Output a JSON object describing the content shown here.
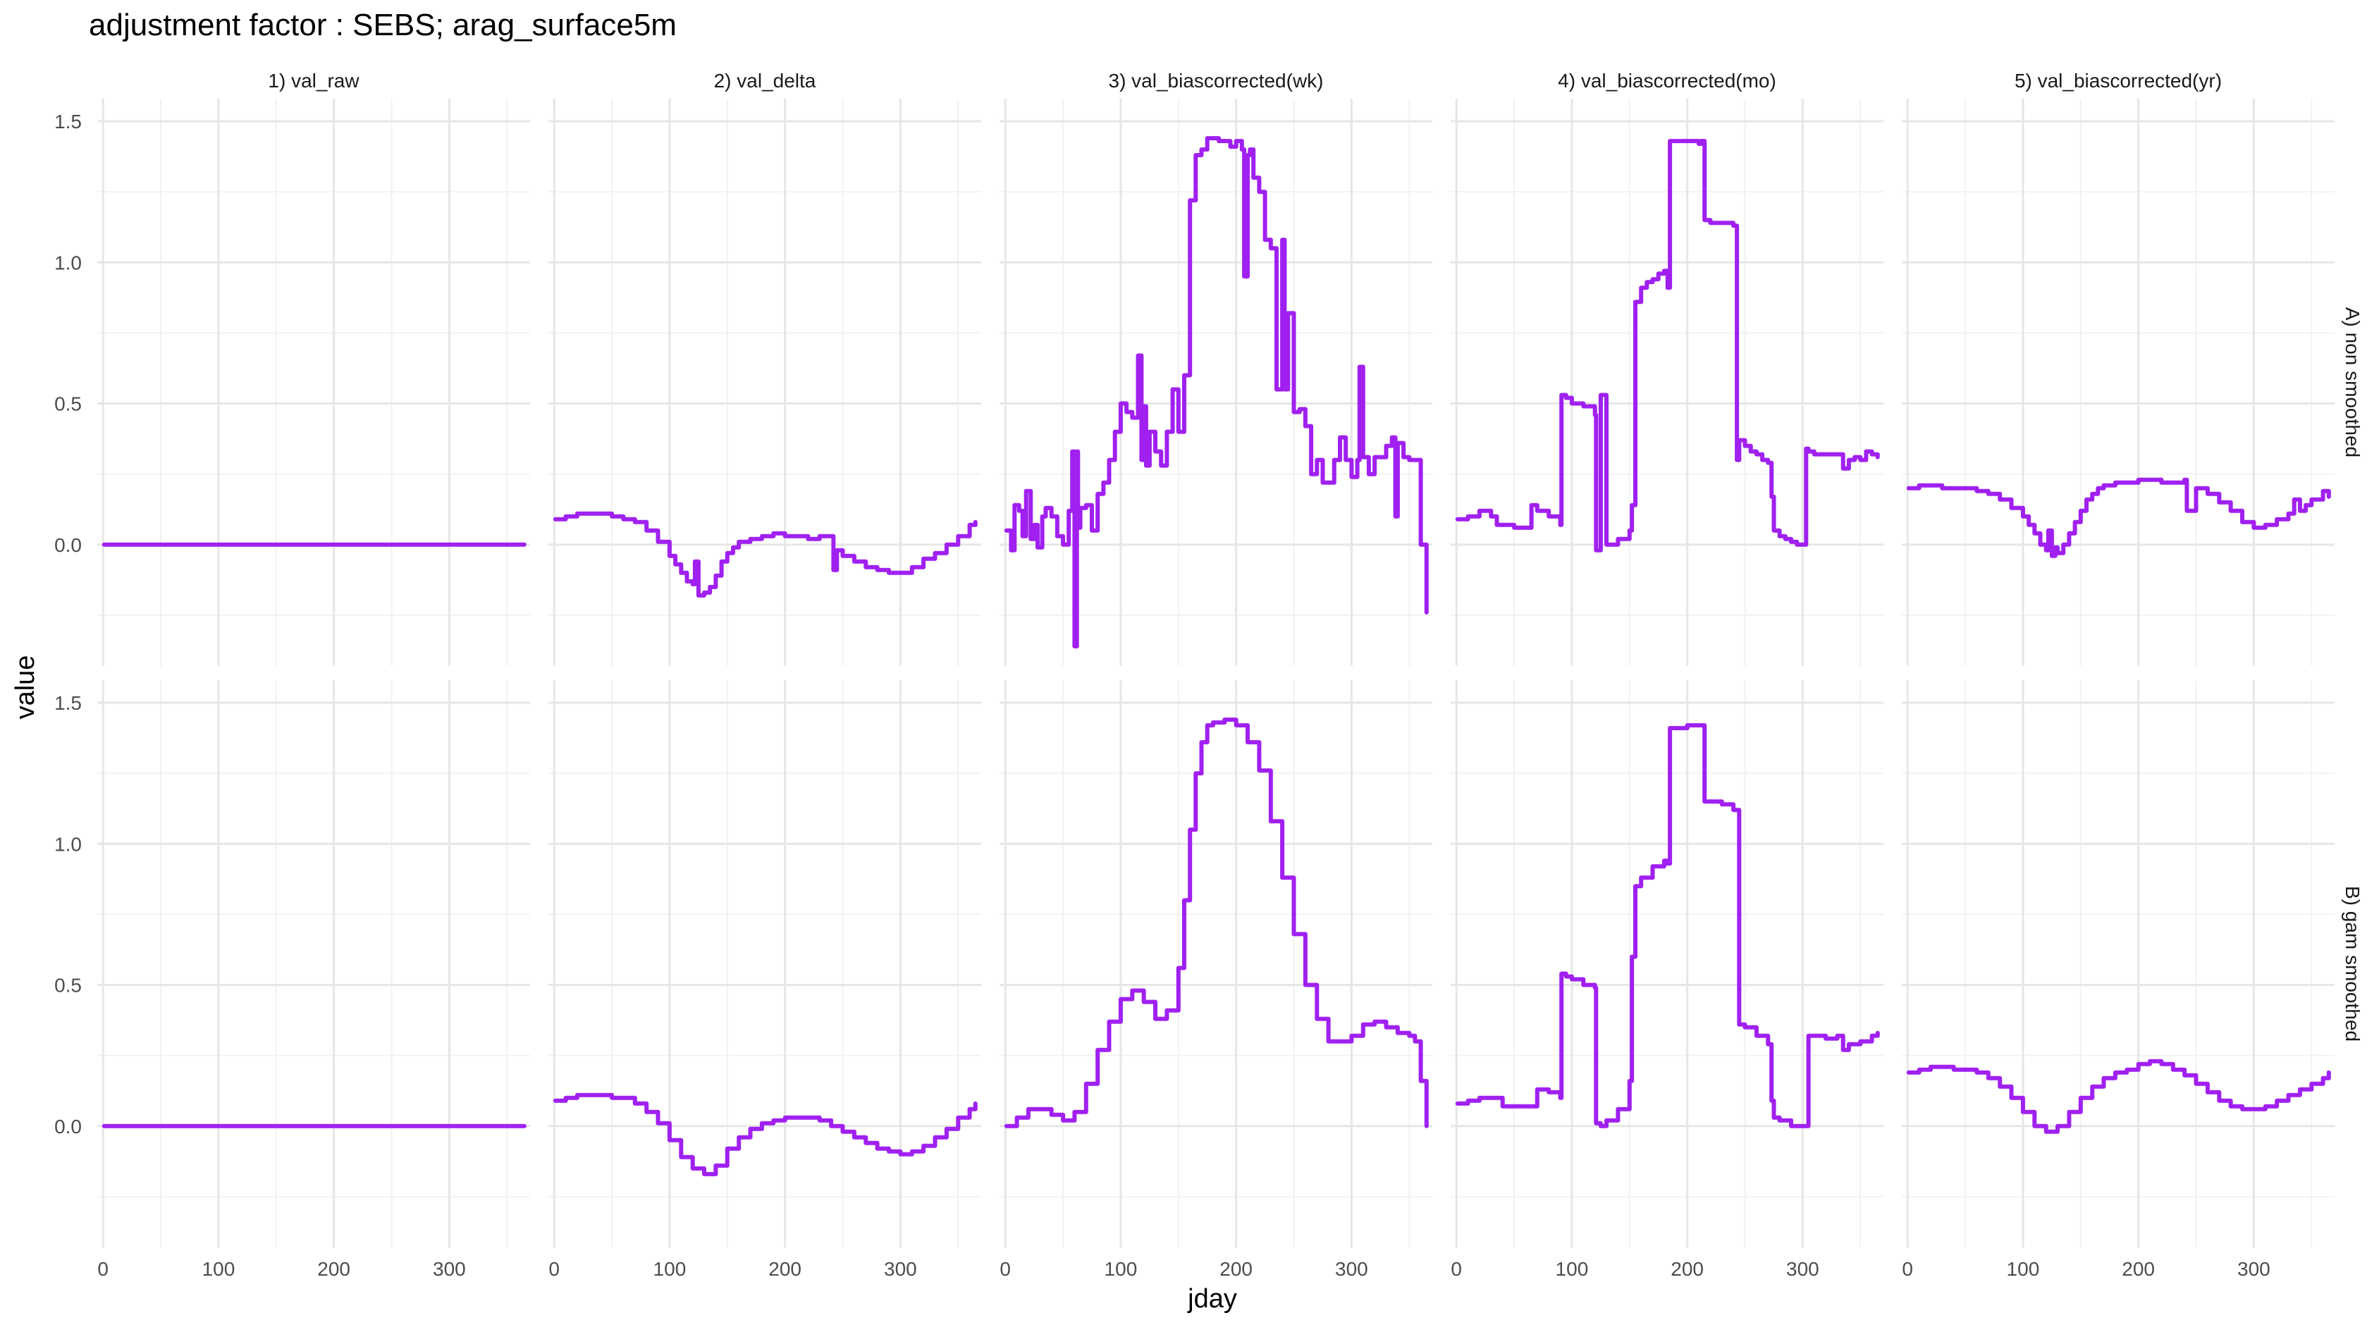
{
  "chart_data": {
    "type": "line",
    "title": "adjustment factor : SEBS; arag_surface5m",
    "xlabel": "jday",
    "ylabel": "value",
    "xlim": [
      -5,
      370
    ],
    "ylim": [
      -0.43,
      1.58
    ],
    "x_ticks": [
      0,
      100,
      200,
      300
    ],
    "x_tick_labels": [
      "0",
      "100",
      "200",
      "300"
    ],
    "y_ticks": [
      0.0,
      0.5,
      1.0,
      1.5
    ],
    "y_tick_labels": [
      "0.0",
      "0.5",
      "1.0",
      "1.5"
    ],
    "grid": true,
    "line_color": "#A020F0",
    "columns": [
      "1) val_raw",
      "2) val_delta",
      "3) val_biascorrected(wk)",
      "4) val_biascorrected(mo)",
      "5) val_biascorrected(yr)"
    ],
    "rows": [
      "A) non smoothed",
      "B) gam smoothed"
    ],
    "panels": [
      [
        {
          "x": [
            1,
            365
          ],
          "y": [
            0.0,
            0.0
          ]
        },
        {
          "x": [
            1,
            10,
            20,
            30,
            40,
            50,
            60,
            70,
            80,
            90,
            100,
            105,
            110,
            115,
            120,
            122,
            125,
            130,
            135,
            140,
            145,
            150,
            155,
            160,
            170,
            180,
            190,
            200,
            210,
            220,
            230,
            240,
            242,
            245,
            250,
            260,
            270,
            280,
            290,
            300,
            310,
            320,
            330,
            340,
            350,
            360,
            365
          ],
          "y": [
            0.09,
            0.1,
            0.11,
            0.11,
            0.11,
            0.1,
            0.09,
            0.08,
            0.05,
            0.01,
            -0.04,
            -0.07,
            -0.1,
            -0.13,
            -0.14,
            -0.06,
            -0.18,
            -0.17,
            -0.15,
            -0.11,
            -0.06,
            -0.03,
            -0.01,
            0.01,
            0.02,
            0.03,
            0.04,
            0.03,
            0.03,
            0.02,
            0.03,
            0.03,
            -0.09,
            -0.02,
            -0.04,
            -0.06,
            -0.08,
            -0.09,
            -0.1,
            -0.1,
            -0.08,
            -0.05,
            -0.03,
            0.0,
            0.03,
            0.07,
            0.08
          ]
        },
        {
          "x": [
            1,
            5,
            8,
            12,
            15,
            18,
            22,
            25,
            28,
            32,
            35,
            40,
            45,
            50,
            55,
            58,
            60,
            62,
            63,
            65,
            70,
            75,
            80,
            85,
            90,
            95,
            100,
            105,
            110,
            115,
            118,
            120,
            122,
            125,
            130,
            135,
            140,
            145,
            150,
            155,
            160,
            165,
            170,
            175,
            180,
            185,
            190,
            195,
            200,
            205,
            207,
            210,
            212,
            215,
            220,
            225,
            230,
            235,
            240,
            242,
            245,
            250,
            255,
            260,
            265,
            270,
            275,
            280,
            285,
            290,
            295,
            300,
            305,
            307,
            310,
            315,
            320,
            325,
            330,
            335,
            338,
            340,
            345,
            350,
            355,
            360,
            365
          ],
          "y": [
            0.05,
            -0.02,
            0.14,
            0.12,
            0.03,
            0.19,
            0.02,
            0.07,
            -0.01,
            0.1,
            0.13,
            0.1,
            0.03,
            0.0,
            0.12,
            0.33,
            -0.36,
            0.33,
            0.06,
            0.13,
            0.14,
            0.05,
            0.18,
            0.22,
            0.3,
            0.4,
            0.5,
            0.47,
            0.45,
            0.67,
            0.3,
            0.49,
            0.28,
            0.4,
            0.33,
            0.28,
            0.4,
            0.55,
            0.4,
            0.6,
            1.22,
            1.38,
            1.4,
            1.44,
            1.44,
            1.43,
            1.43,
            1.41,
            1.43,
            1.4,
            0.95,
            1.38,
            1.4,
            1.3,
            1.25,
            1.08,
            1.05,
            0.55,
            1.08,
            0.55,
            0.82,
            0.47,
            0.48,
            0.42,
            0.25,
            0.3,
            0.22,
            0.22,
            0.3,
            0.38,
            0.3,
            0.24,
            0.3,
            0.63,
            0.31,
            0.25,
            0.31,
            0.31,
            0.35,
            0.38,
            0.1,
            0.36,
            0.31,
            0.3,
            0.3,
            0.0,
            -0.24
          ]
        },
        {
          "x": [
            1,
            10,
            20,
            30,
            35,
            40,
            50,
            60,
            65,
            70,
            80,
            90,
            91,
            95,
            100,
            110,
            120,
            121,
            125,
            130,
            140,
            150,
            152,
            155,
            160,
            165,
            170,
            175,
            180,
            183,
            185,
            190,
            200,
            210,
            212,
            215,
            220,
            230,
            240,
            243,
            245,
            250,
            255,
            260,
            265,
            270,
            273,
            275,
            280,
            285,
            290,
            295,
            300,
            303,
            305,
            310,
            320,
            330,
            335,
            340,
            345,
            350,
            355,
            360,
            365
          ],
          "y": [
            0.09,
            0.1,
            0.12,
            0.1,
            0.07,
            0.07,
            0.06,
            0.06,
            0.14,
            0.12,
            0.1,
            0.07,
            0.53,
            0.52,
            0.5,
            0.49,
            0.46,
            -0.02,
            0.53,
            0.0,
            0.02,
            0.05,
            0.14,
            0.86,
            0.91,
            0.93,
            0.94,
            0.96,
            0.97,
            0.91,
            1.43,
            1.43,
            1.43,
            1.42,
            1.43,
            1.15,
            1.14,
            1.14,
            1.13,
            0.3,
            0.37,
            0.35,
            0.33,
            0.32,
            0.3,
            0.29,
            0.17,
            0.05,
            0.03,
            0.02,
            0.01,
            0.0,
            0.0,
            0.34,
            0.33,
            0.32,
            0.32,
            0.32,
            0.27,
            0.3,
            0.31,
            0.3,
            0.33,
            0.32,
            0.31
          ]
        },
        {
          "x": [
            1,
            10,
            20,
            30,
            40,
            50,
            60,
            70,
            80,
            90,
            100,
            105,
            110,
            115,
            120,
            122,
            125,
            128,
            130,
            135,
            140,
            145,
            150,
            155,
            160,
            165,
            170,
            175,
            180,
            190,
            200,
            210,
            220,
            230,
            240,
            242,
            250,
            260,
            270,
            280,
            290,
            300,
            310,
            320,
            330,
            335,
            340,
            345,
            350,
            360,
            365
          ],
          "y": [
            0.2,
            0.21,
            0.21,
            0.2,
            0.2,
            0.2,
            0.19,
            0.18,
            0.16,
            0.13,
            0.1,
            0.07,
            0.04,
            0.0,
            -0.02,
            0.05,
            -0.04,
            -0.01,
            -0.03,
            0.0,
            0.04,
            0.08,
            0.12,
            0.16,
            0.18,
            0.2,
            0.21,
            0.21,
            0.22,
            0.22,
            0.23,
            0.23,
            0.22,
            0.22,
            0.23,
            0.12,
            0.2,
            0.18,
            0.15,
            0.12,
            0.08,
            0.06,
            0.07,
            0.09,
            0.11,
            0.16,
            0.12,
            0.14,
            0.16,
            0.19,
            0.17
          ]
        }
      ],
      [
        {
          "x": [
            1,
            365
          ],
          "y": [
            0.0,
            0.0
          ]
        },
        {
          "x": [
            1,
            10,
            20,
            30,
            40,
            50,
            60,
            70,
            80,
            90,
            100,
            110,
            120,
            130,
            140,
            150,
            160,
            170,
            180,
            190,
            200,
            210,
            220,
            230,
            240,
            250,
            260,
            270,
            280,
            290,
            300,
            310,
            320,
            330,
            340,
            350,
            360,
            365
          ],
          "y": [
            0.09,
            0.1,
            0.11,
            0.11,
            0.11,
            0.1,
            0.1,
            0.08,
            0.05,
            0.01,
            -0.05,
            -0.11,
            -0.15,
            -0.17,
            -0.14,
            -0.08,
            -0.04,
            -0.01,
            0.01,
            0.02,
            0.03,
            0.03,
            0.03,
            0.02,
            0.0,
            -0.02,
            -0.04,
            -0.06,
            -0.08,
            -0.09,
            -0.1,
            -0.09,
            -0.07,
            -0.04,
            -0.01,
            0.03,
            0.06,
            0.08
          ]
        },
        {
          "x": [
            1,
            10,
            20,
            30,
            40,
            50,
            60,
            70,
            80,
            90,
            100,
            110,
            120,
            130,
            140,
            150,
            155,
            160,
            165,
            170,
            175,
            180,
            190,
            200,
            210,
            220,
            230,
            240,
            250,
            260,
            270,
            280,
            290,
            300,
            310,
            320,
            330,
            340,
            350,
            355,
            360,
            365
          ],
          "y": [
            0.0,
            0.03,
            0.06,
            0.06,
            0.04,
            0.02,
            0.05,
            0.15,
            0.27,
            0.37,
            0.45,
            0.48,
            0.44,
            0.38,
            0.41,
            0.56,
            0.8,
            1.05,
            1.25,
            1.36,
            1.42,
            1.43,
            1.44,
            1.42,
            1.36,
            1.26,
            1.08,
            0.88,
            0.68,
            0.5,
            0.38,
            0.3,
            0.3,
            0.32,
            0.36,
            0.37,
            0.35,
            0.33,
            0.32,
            0.3,
            0.16,
            0.0
          ]
        },
        {
          "x": [
            1,
            10,
            20,
            30,
            40,
            50,
            60,
            70,
            80,
            90,
            91,
            95,
            100,
            110,
            120,
            121,
            125,
            130,
            140,
            150,
            152,
            155,
            160,
            170,
            180,
            183,
            185,
            190,
            200,
            210,
            212,
            215,
            220,
            230,
            240,
            243,
            245,
            250,
            260,
            270,
            273,
            275,
            280,
            290,
            300,
            303,
            305,
            310,
            320,
            330,
            335,
            340,
            350,
            360,
            365
          ],
          "y": [
            0.08,
            0.09,
            0.1,
            0.1,
            0.07,
            0.07,
            0.07,
            0.13,
            0.12,
            0.1,
            0.54,
            0.53,
            0.52,
            0.5,
            0.49,
            0.01,
            0.0,
            0.02,
            0.06,
            0.16,
            0.6,
            0.85,
            0.88,
            0.92,
            0.94,
            0.93,
            1.41,
            1.41,
            1.42,
            1.42,
            1.42,
            1.15,
            1.15,
            1.14,
            1.12,
            1.12,
            0.36,
            0.35,
            0.32,
            0.29,
            0.09,
            0.03,
            0.02,
            0.0,
            0.0,
            0.0,
            0.32,
            0.32,
            0.31,
            0.32,
            0.27,
            0.29,
            0.3,
            0.32,
            0.33
          ]
        },
        {
          "x": [
            1,
            10,
            20,
            30,
            40,
            50,
            60,
            70,
            80,
            90,
            100,
            110,
            120,
            130,
            140,
            150,
            160,
            170,
            180,
            190,
            200,
            210,
            220,
            230,
            240,
            250,
            260,
            270,
            280,
            290,
            300,
            310,
            320,
            330,
            340,
            350,
            360,
            365
          ],
          "y": [
            0.19,
            0.2,
            0.21,
            0.21,
            0.2,
            0.2,
            0.19,
            0.17,
            0.14,
            0.1,
            0.05,
            0.0,
            -0.02,
            0.0,
            0.05,
            0.1,
            0.14,
            0.17,
            0.19,
            0.2,
            0.22,
            0.23,
            0.22,
            0.2,
            0.18,
            0.15,
            0.12,
            0.09,
            0.07,
            0.06,
            0.06,
            0.07,
            0.09,
            0.11,
            0.13,
            0.15,
            0.17,
            0.19
          ]
        }
      ]
    ]
  }
}
